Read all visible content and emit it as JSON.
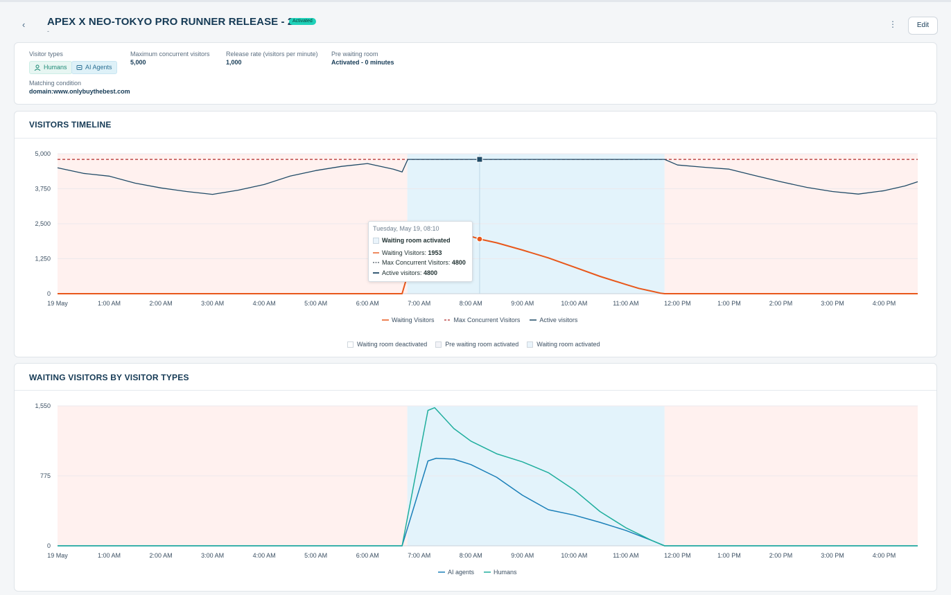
{
  "header": {
    "title": "APEX X NEO-TOKYO PRO RUNNER RELEASE - 2026",
    "badge": "Activated",
    "subtitle": "-",
    "edit_label": "Edit"
  },
  "info": {
    "visitor_types_label": "Visitor types",
    "chips": [
      "Humans",
      "AI Agents"
    ],
    "max_concurrent_label": "Maximum concurrent visitors",
    "max_concurrent_value": "5,000",
    "release_rate_label": "Release rate (visitors per minute)",
    "release_rate_value": "1,000",
    "pre_waiting_label": "Pre waiting room",
    "pre_waiting_value": "Activated - 0 minutes",
    "matching_label": "Matching condition",
    "matching_value": "domain:www.onlybuythebest.com"
  },
  "timeline": {
    "title": "VISITORS TIMELINE",
    "tooltip": {
      "date": "Tuesday, May 19, 08:10",
      "state": "Waiting room activated",
      "waiting_label": "Waiting Visitors: ",
      "waiting_value": "1953",
      "max_label": "Max Concurrent Visitors: ",
      "max_value": "4800",
      "active_label": "Active visitors: ",
      "active_value": "4800"
    },
    "band_legend": [
      "Waiting room deactivated",
      "Pre waiting room activated",
      "Waiting room activated"
    ]
  },
  "types": {
    "title": "WAITING VISITORS BY VISITOR TYPES"
  },
  "colors": {
    "waiting": "#e8571a",
    "max": "#b22a2a",
    "active": "#1f4a66",
    "ai": "#1a7fb8",
    "humans": "#1fae9d",
    "band_deactivated": "#fff1ef",
    "band_activated": "#e3f3fb"
  },
  "chart_data": [
    {
      "type": "line",
      "x_ticks": [
        "19 May",
        "1:00 AM",
        "2:00 AM",
        "3:00 AM",
        "4:00 AM",
        "5:00 AM",
        "6:00 AM",
        "7:00 AM",
        "8:00 AM",
        "9:00 AM",
        "10:00 AM",
        "11:00 AM",
        "12:00 PM",
        "1:00 PM",
        "2:00 PM",
        "3:00 PM",
        "4:00 PM"
      ],
      "y_ticks": [
        "5,000",
        "3,750",
        "2,500",
        "1,250",
        "0"
      ],
      "ylim": [
        0,
        5000
      ],
      "xlim_hours": [
        0,
        16.65
      ],
      "activated_window_hours": [
        6.77,
        11.75
      ],
      "series": [
        {
          "name": "Waiting Visitors",
          "x": [
            0,
            6.67,
            6.78,
            7.0,
            7.25,
            7.5,
            7.75,
            8.0,
            8.17,
            8.5,
            9.0,
            9.5,
            10.0,
            10.5,
            11.0,
            11.25,
            11.5,
            11.67,
            11.75,
            16.65
          ],
          "y": [
            0,
            0,
            700,
            1500,
            2120,
            2150,
            2120,
            2050,
            1953,
            1820,
            1560,
            1280,
            950,
            620,
            330,
            190,
            90,
            20,
            0,
            0
          ]
        },
        {
          "name": "Max Concurrent Visitors",
          "x": [
            0,
            16.65
          ],
          "y": [
            4800,
            4800
          ]
        },
        {
          "name": "Active visitors",
          "x": [
            0,
            0.5,
            1,
            1.5,
            2,
            2.5,
            3,
            3.5,
            4,
            4.5,
            5,
            5.5,
            6,
            6.5,
            6.67,
            6.78,
            11.75,
            12,
            12.5,
            13,
            13.5,
            14,
            14.5,
            15,
            15.5,
            16,
            16.4,
            16.65
          ],
          "y": [
            4500,
            4300,
            4200,
            3950,
            3780,
            3650,
            3550,
            3700,
            3900,
            4200,
            4400,
            4550,
            4650,
            4450,
            4350,
            4800,
            4800,
            4600,
            4520,
            4450,
            4220,
            4000,
            3800,
            3650,
            3560,
            3680,
            3850,
            4000
          ]
        }
      ],
      "legend": [
        "Waiting Visitors",
        "Max Concurrent Visitors",
        "Active visitors"
      ]
    },
    {
      "type": "line",
      "x_ticks": [
        "19 May",
        "1:00 AM",
        "2:00 AM",
        "3:00 AM",
        "4:00 AM",
        "5:00 AM",
        "6:00 AM",
        "7:00 AM",
        "8:00 AM",
        "9:00 AM",
        "10:00 AM",
        "11:00 AM",
        "12:00 PM",
        "1:00 PM",
        "2:00 PM",
        "3:00 PM",
        "4:00 PM"
      ],
      "y_ticks": [
        "1,550",
        "775",
        "0"
      ],
      "ylim": [
        0,
        1550
      ],
      "xlim_hours": [
        0,
        16.65
      ],
      "activated_window_hours": [
        6.77,
        11.75
      ],
      "series": [
        {
          "name": "AI agents",
          "x": [
            0,
            6.67,
            7.17,
            7.33,
            7.67,
            8.0,
            8.5,
            9.0,
            9.5,
            10.0,
            10.5,
            11.0,
            11.5,
            11.75,
            16.65
          ],
          "y": [
            0,
            0,
            940,
            970,
            960,
            900,
            760,
            560,
            400,
            340,
            260,
            170,
            60,
            0,
            0
          ]
        },
        {
          "name": "Humans",
          "x": [
            0,
            6.67,
            7.17,
            7.3,
            7.67,
            8.0,
            8.5,
            9.0,
            9.5,
            10.0,
            10.5,
            11.0,
            11.5,
            11.75,
            16.65
          ],
          "y": [
            0,
            0,
            1500,
            1530,
            1300,
            1160,
            1020,
            930,
            810,
            620,
            380,
            200,
            60,
            0,
            0
          ]
        }
      ],
      "legend": [
        "AI agents",
        "Humans"
      ]
    }
  ]
}
